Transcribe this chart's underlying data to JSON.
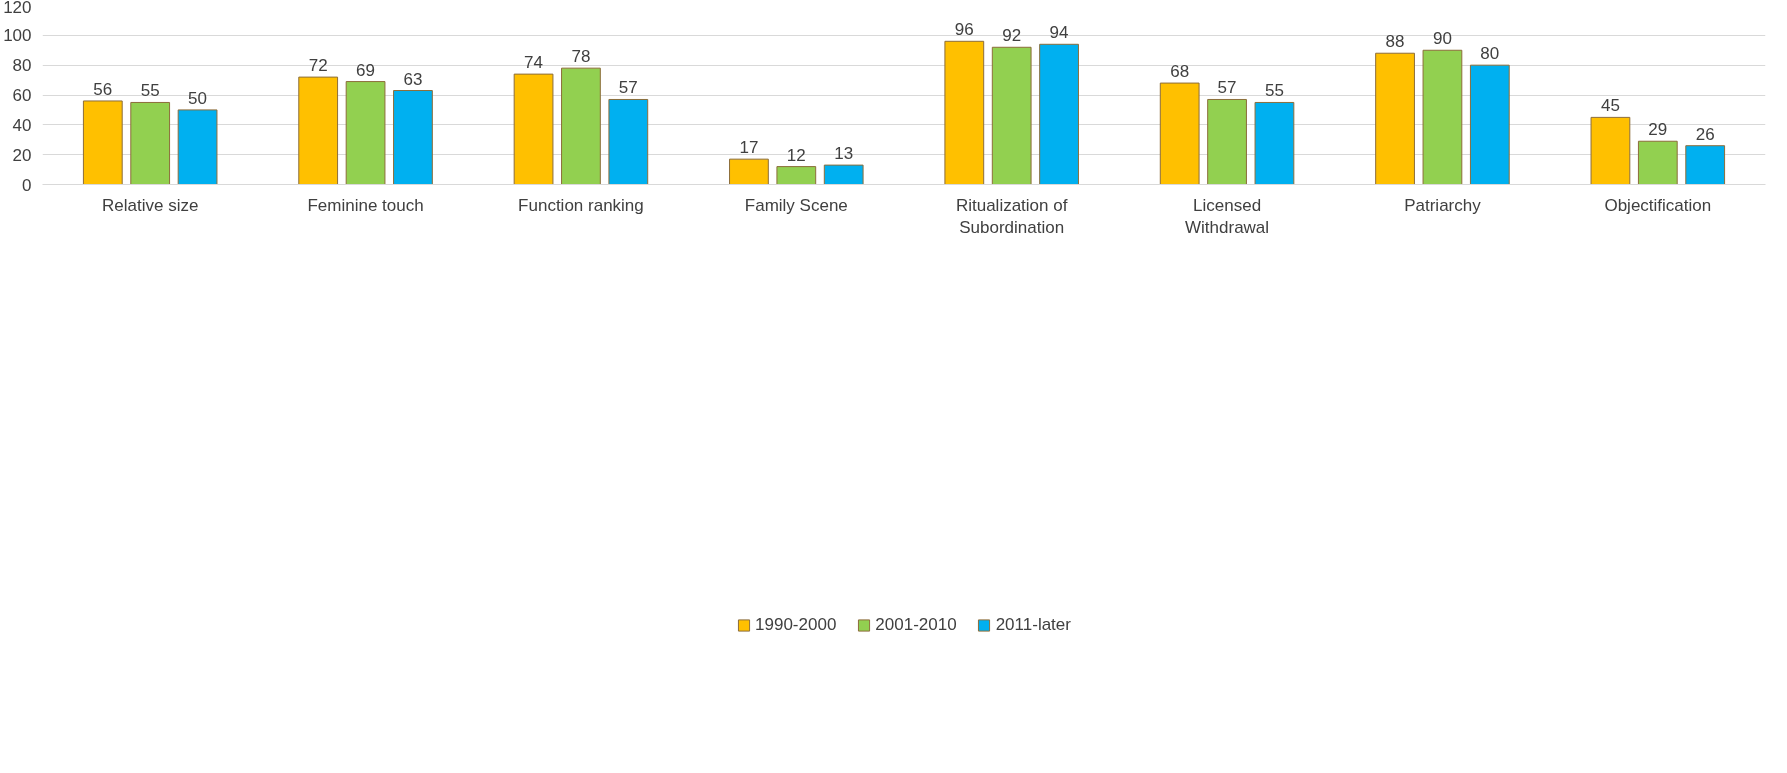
{
  "chart_data": {
    "type": "bar",
    "categories": [
      "Relative size",
      "Feminine touch",
      "Function ranking",
      "Family Scene",
      "Ritualization of Subordination",
      "Licensed Withdrawal",
      "Patriarchy",
      "Objectification"
    ],
    "series": [
      {
        "name": "1990-2000",
        "color": "#ffc000",
        "values": [
          56,
          72,
          74,
          17,
          96,
          68,
          88,
          45
        ]
      },
      {
        "name": "2001-2010",
        "color": "#92d050",
        "values": [
          55,
          69,
          78,
          12,
          92,
          57,
          90,
          29
        ]
      },
      {
        "name": "2011-later",
        "color": "#00b0f0",
        "values": [
          50,
          63,
          57,
          13,
          94,
          55,
          80,
          26
        ]
      }
    ],
    "ylim": [
      0,
      120
    ],
    "yticks": [
      0,
      20,
      40,
      60,
      80,
      100,
      120
    ],
    "grid": "y",
    "legend": "bottom",
    "data_labels": true
  }
}
